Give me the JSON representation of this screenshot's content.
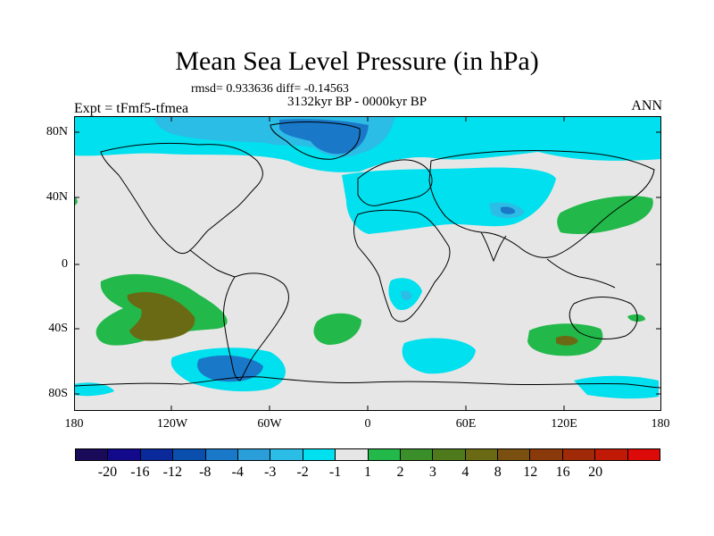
{
  "title": "Mean Sea Level Pressure (in hPa)",
  "stats": "rmsd= 0.933636 diff= -0.14563",
  "period": "3132kyr BP - 0000kyr BP",
  "experiment": "Expt = tFmf5-tfmea",
  "season": "ANN",
  "lat_labels": [
    "80N",
    "40N",
    "0",
    "40S",
    "80S"
  ],
  "lon_labels": [
    "180",
    "120W",
    "60W",
    "0",
    "60E",
    "120E",
    "180"
  ],
  "colorbar": {
    "colors": [
      "#1a0a5a",
      "#120a8a",
      "#0a2a9c",
      "#0a4fae",
      "#1a78c8",
      "#2a9ed8",
      "#2bbde6",
      "#00e0ee",
      "#e6e6e6",
      "#22b84a",
      "#3a8f2a",
      "#4f7a1c",
      "#6b6a14",
      "#7a5010",
      "#8a3a0a",
      "#a02a08",
      "#c01a06",
      "#dd0a0a"
    ],
    "labels": [
      "-20",
      "-16",
      "-12",
      "-8",
      "-4",
      "-3",
      "-2",
      "-1",
      "1",
      "2",
      "3",
      "4",
      "8",
      "12",
      "16",
      "20"
    ]
  }
}
